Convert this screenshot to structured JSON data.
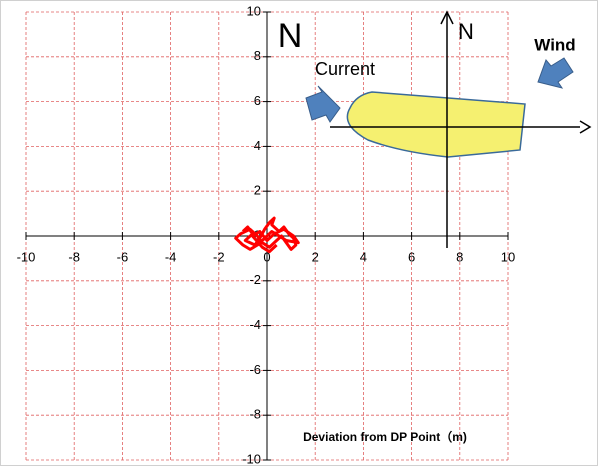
{
  "chart_data": {
    "type": "scatter",
    "x": [
      -1.0,
      -0.8,
      -0.6,
      -0.9,
      -0.5,
      -0.3,
      -0.1,
      0.1,
      0.3,
      0.2,
      0.5,
      0.7,
      0.9,
      1.1,
      1.2,
      1.0,
      0.8,
      0.6,
      0.4,
      0.1,
      -0.2,
      -0.4,
      -0.7,
      -1.1,
      -1.3,
      -1.0,
      -0.7,
      -0.4,
      -0.1,
      0.2,
      0.5,
      0.8,
      1.3,
      1.1,
      0.7,
      0.3,
      0.0,
      -0.3,
      -0.6,
      -0.2,
      0.1,
      0.4
    ],
    "values": [
      0.2,
      0.4,
      0.1,
      -0.2,
      -0.4,
      -0.1,
      0.3,
      0.6,
      0.8,
      0.5,
      0.2,
      0.4,
      0.1,
      -0.1,
      -0.4,
      -0.6,
      -0.3,
      0.0,
      -0.2,
      -0.5,
      -0.3,
      0.0,
      0.3,
      0.1,
      -0.1,
      -0.4,
      -0.6,
      -0.4,
      -0.1,
      0.2,
      0.0,
      -0.2,
      -0.3,
      0.0,
      0.3,
      0.1,
      -0.2,
      0.2,
      0.0,
      -0.5,
      -0.7,
      -0.4
    ],
    "color": "#ff0000",
    "xlim": [
      -10,
      10
    ],
    "ylim": [
      -10,
      10
    ],
    "xticks": [
      -10,
      -8,
      -6,
      -4,
      -2,
      0,
      2,
      4,
      6,
      8,
      10
    ],
    "yticks": [
      -10,
      -8,
      -6,
      -4,
      -2,
      0,
      2,
      4,
      6,
      8,
      10
    ],
    "grid": true,
    "annotations": [
      "N",
      "Current",
      "N",
      "Wind",
      "Deviation from DP Point（m)"
    ]
  }
}
